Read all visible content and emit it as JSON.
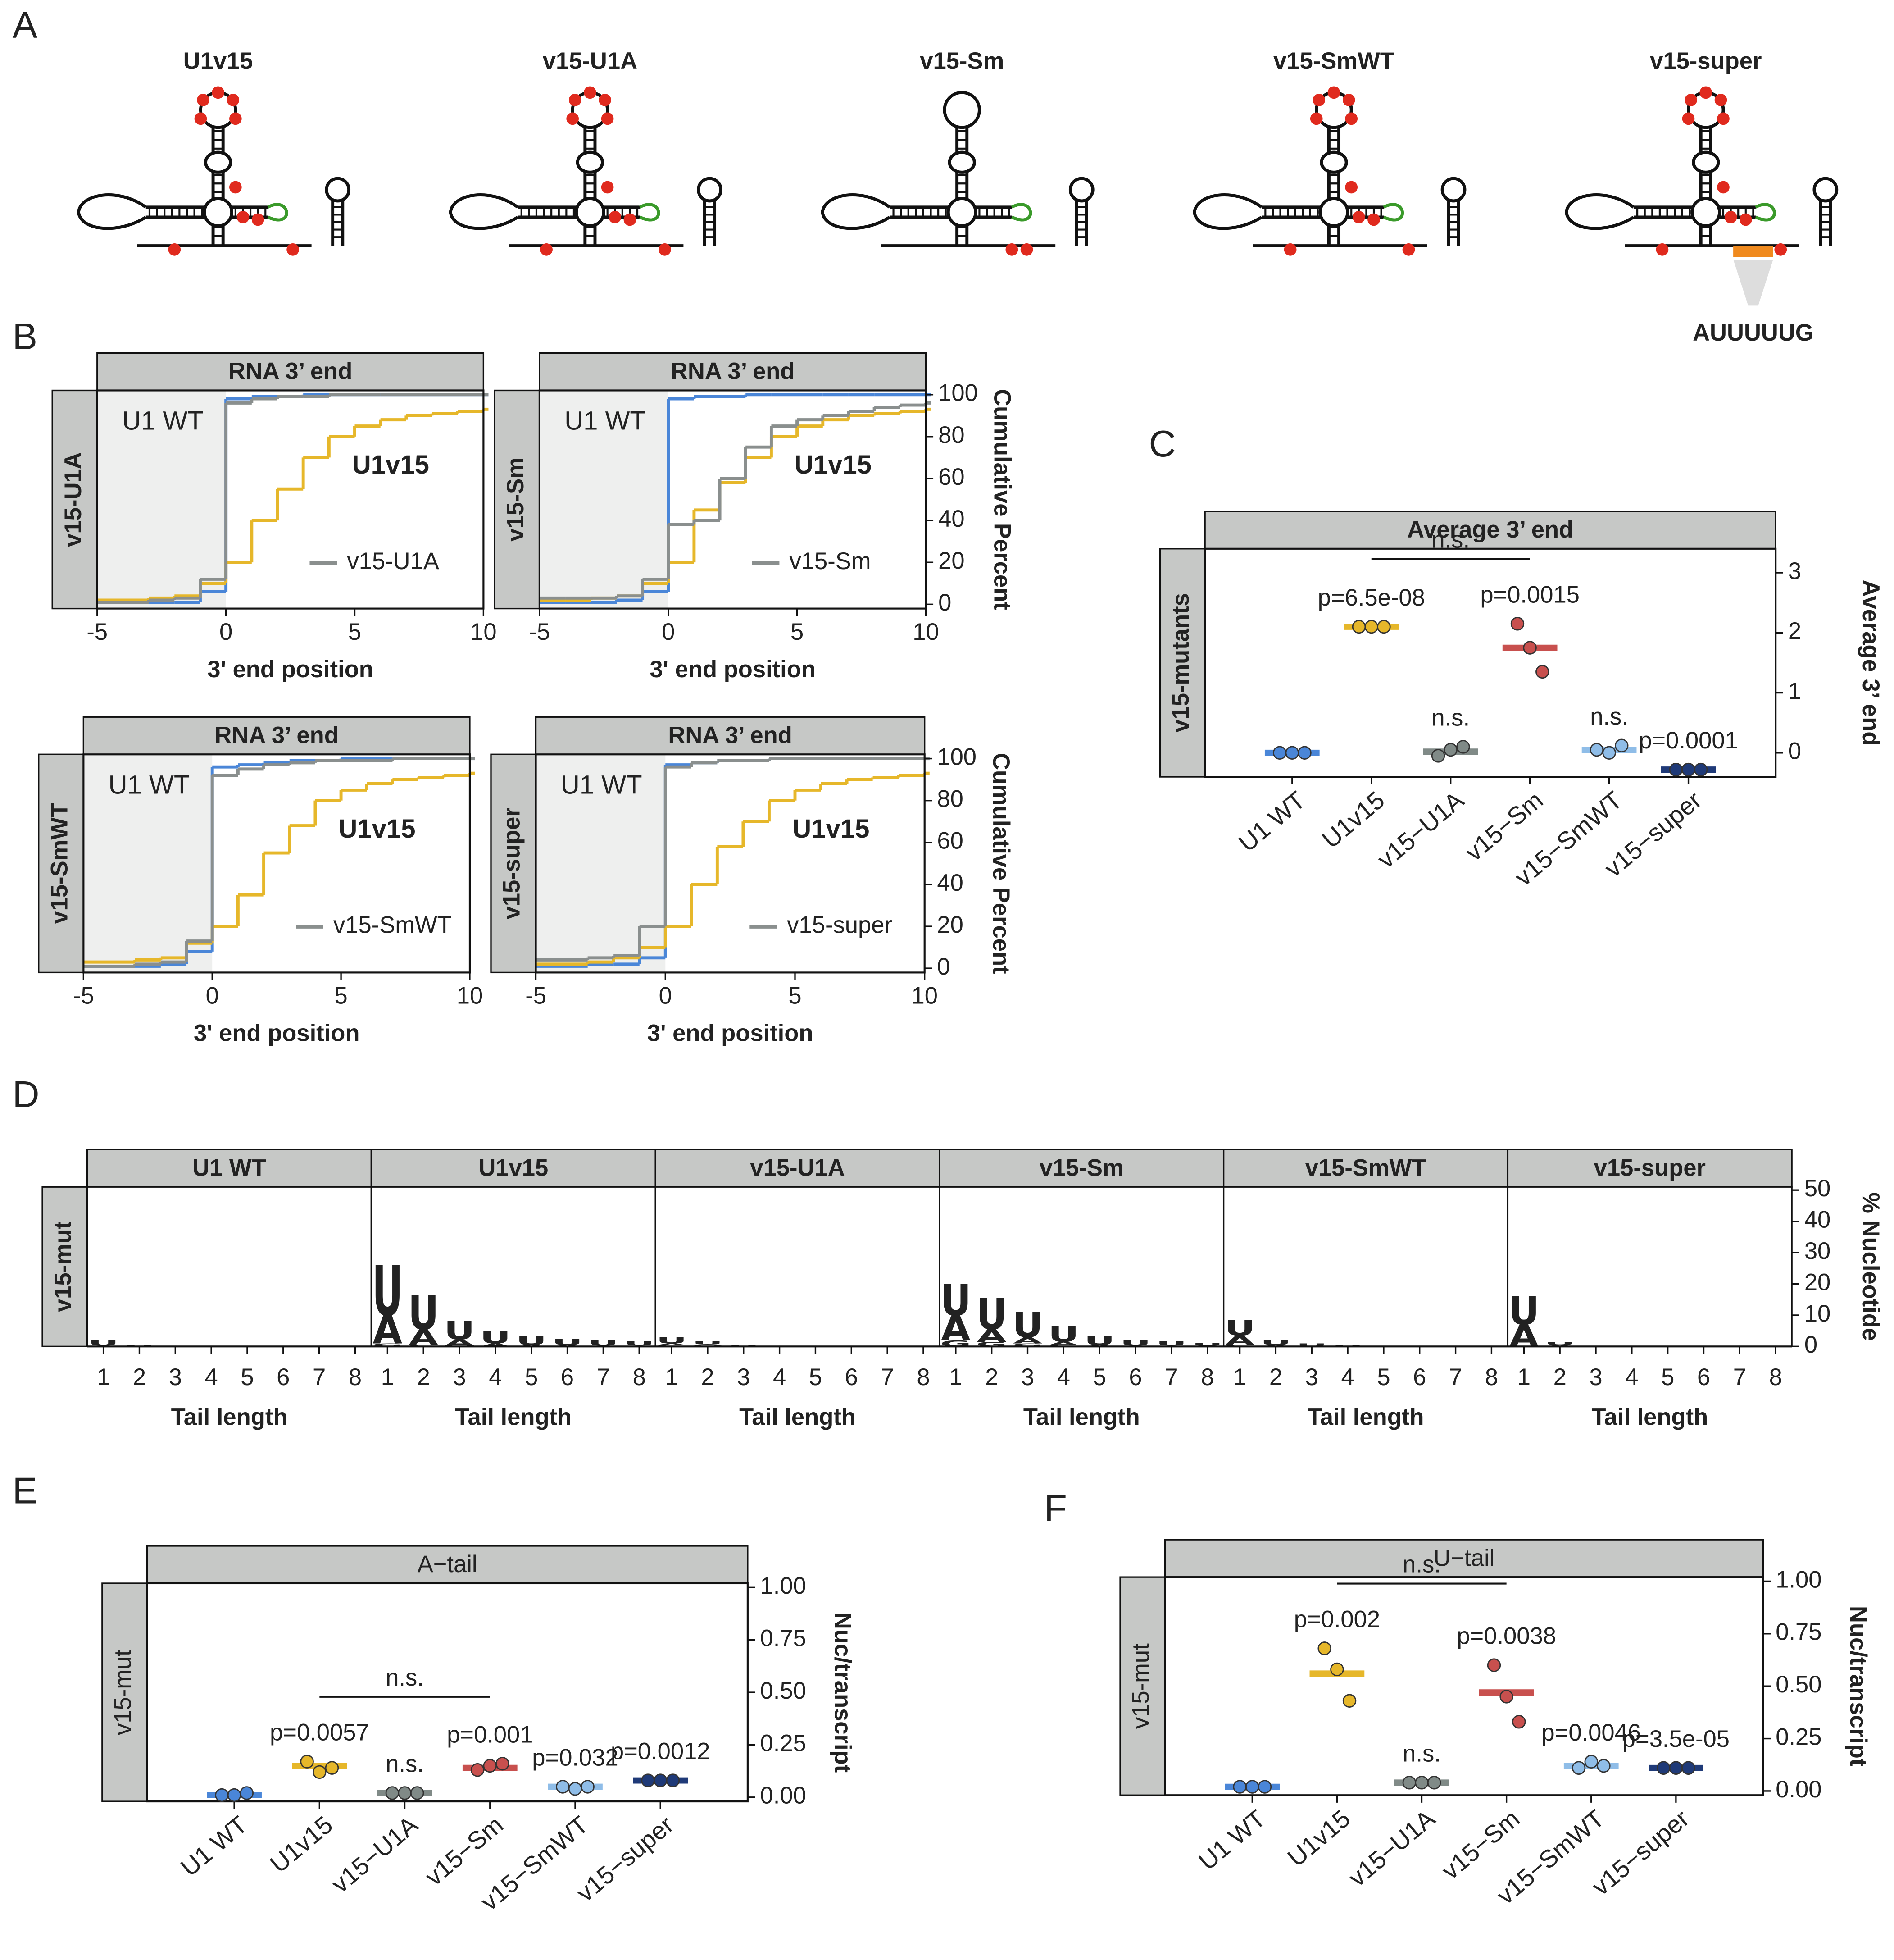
{
  "panel_labels": [
    "A",
    "B",
    "C",
    "D",
    "E",
    "F"
  ],
  "diagrams": {
    "labels": [
      "U1v15",
      "v15-U1A",
      "v15-Sm",
      "v15-SmWT",
      "v15-super"
    ],
    "motif": "AUUUUUG"
  },
  "chart_data": [
    {
      "type": "step",
      "title": "RNA 3’ end",
      "row_label": "v15-U1A",
      "xlabel": "3' end position",
      "x": [
        -5,
        -4,
        -3,
        -2,
        -1,
        0,
        1,
        2,
        3,
        4,
        5,
        6,
        7,
        8,
        9,
        10
      ],
      "xlim": [
        -5,
        10
      ],
      "xticks": [
        -5,
        0,
        5,
        10
      ],
      "ylim": [
        -2,
        102
      ],
      "series": [
        {
          "name": "U1 WT",
          "color": "#4a86d8",
          "values": [
            1,
            1,
            1,
            1,
            6,
            98,
            99,
            99,
            100,
            100,
            100,
            100,
            100,
            100,
            100,
            100
          ]
        },
        {
          "name": "U1v15",
          "color": "#e6b72a",
          "values": [
            2,
            2,
            3,
            4,
            10,
            20,
            40,
            55,
            70,
            80,
            85,
            88,
            90,
            91,
            92,
            93
          ]
        },
        {
          "name": "v15-U1A",
          "color": "#8a8f8e",
          "values": [
            1,
            1,
            2,
            3,
            12,
            96,
            98,
            99,
            99,
            100,
            100,
            100,
            100,
            100,
            100,
            100
          ]
        }
      ]
    },
    {
      "type": "step",
      "title": "RNA 3’ end",
      "row_label": "v15-Sm",
      "xlabel": "3' end position",
      "ylabel": "Cumulative Percent",
      "x": [
        -5,
        -4,
        -3,
        -2,
        -1,
        0,
        1,
        2,
        3,
        4,
        5,
        6,
        7,
        8,
        9,
        10
      ],
      "xlim": [
        -5,
        10
      ],
      "xticks": [
        -5,
        0,
        5,
        10
      ],
      "ylim": [
        -2,
        102
      ],
      "yticks": [
        0,
        20,
        40,
        60,
        80,
        100
      ],
      "series": [
        {
          "name": "U1 WT",
          "color": "#4a86d8",
          "values": [
            1,
            1,
            1,
            2,
            6,
            98,
            99,
            99,
            100,
            100,
            100,
            100,
            100,
            100,
            100,
            100
          ]
        },
        {
          "name": "U1v15",
          "color": "#e6b72a",
          "values": [
            2,
            2,
            3,
            4,
            10,
            20,
            45,
            58,
            70,
            80,
            85,
            88,
            90,
            91,
            92,
            93
          ]
        },
        {
          "name": "v15-Sm",
          "color": "#8a8f8e",
          "values": [
            3,
            3,
            3,
            4,
            12,
            38,
            40,
            60,
            75,
            85,
            88,
            90,
            92,
            94,
            95,
            96
          ]
        }
      ]
    },
    {
      "type": "step",
      "title": "RNA 3’ end",
      "row_label": "v15-SmWT",
      "xlabel": "3' end position",
      "x": [
        -5,
        -4,
        -3,
        -2,
        -1,
        0,
        1,
        2,
        3,
        4,
        5,
        6,
        7,
        8,
        9,
        10
      ],
      "xlim": [
        -5,
        10
      ],
      "xticks": [
        -5,
        0,
        5,
        10
      ],
      "ylim": [
        -2,
        102
      ],
      "series": [
        {
          "name": "U1 WT",
          "color": "#4a86d8",
          "values": [
            1,
            1,
            1,
            2,
            8,
            96,
            97,
            98,
            99,
            99,
            100,
            100,
            100,
            100,
            100,
            100
          ]
        },
        {
          "name": "U1v15",
          "color": "#e6b72a",
          "values": [
            3,
            3,
            4,
            5,
            12,
            20,
            35,
            55,
            68,
            80,
            85,
            88,
            90,
            91,
            92,
            93
          ]
        },
        {
          "name": "v15-SmWT",
          "color": "#8a8f8e",
          "values": [
            1,
            1,
            2,
            3,
            13,
            92,
            95,
            97,
            98,
            99,
            99,
            99,
            100,
            100,
            100,
            100
          ]
        }
      ]
    },
    {
      "type": "step",
      "title": "RNA 3’ end",
      "row_label": "v15-super",
      "xlabel": "3' end position",
      "ylabel": "Cumulative Percent",
      "x": [
        -5,
        -4,
        -3,
        -2,
        -1,
        0,
        1,
        2,
        3,
        4,
        5,
        6,
        7,
        8,
        9,
        10
      ],
      "xlim": [
        -5,
        10
      ],
      "xticks": [
        -5,
        0,
        5,
        10
      ],
      "ylim": [
        -2,
        102
      ],
      "yticks": [
        0,
        20,
        40,
        60,
        80,
        100
      ],
      "series": [
        {
          "name": "U1 WT",
          "color": "#4a86d8",
          "values": [
            1,
            1,
            2,
            2,
            5,
            97,
            98,
            99,
            99,
            100,
            100,
            100,
            100,
            100,
            100,
            100
          ]
        },
        {
          "name": "U1v15",
          "color": "#e6b72a",
          "values": [
            2,
            2,
            3,
            5,
            10,
            20,
            40,
            58,
            70,
            80,
            85,
            88,
            90,
            91,
            92,
            93
          ]
        },
        {
          "name": "v15-super",
          "color": "#8a8f8e",
          "values": [
            4,
            4,
            5,
            6,
            20,
            96,
            98,
            99,
            99,
            100,
            100,
            100,
            100,
            100,
            100,
            100
          ]
        }
      ]
    },
    {
      "type": "dot",
      "title": "Average 3’ end",
      "row_label": "v15-mutants",
      "ylabel": "Average 3’ end",
      "categories": [
        "U1 WT",
        "U1v15",
        "v15−U1A",
        "v15−Sm",
        "v15−SmWT",
        "v15−super"
      ],
      "colors": [
        "#4a86d8",
        "#e6b72a",
        "#808a87",
        "#c8504e",
        "#8fbde8",
        "#1f3a78"
      ],
      "replicates": [
        [
          0,
          0,
          0
        ],
        [
          2.1,
          2.1,
          2.1
        ],
        [
          -0.05,
          0.05,
          0.1
        ],
        [
          2.15,
          1.75,
          1.35
        ],
        [
          0.05,
          0,
          0.12
        ],
        [
          -0.28,
          -0.28,
          -0.28
        ]
      ],
      "means": [
        0,
        2.1,
        0.02,
        1.75,
        0.05,
        -0.28
      ],
      "annotations": [
        null,
        "p=6.5e-08",
        "n.s.",
        "p=0.0015",
        "n.s.",
        "p=0.0001"
      ],
      "bracket": {
        "label": "n.s.",
        "between": [
          "U1v15",
          "v15−Sm"
        ]
      },
      "ylim": [
        -0.4,
        3.4
      ],
      "yticks": [
        0,
        1,
        2,
        3
      ]
    },
    {
      "type": "logo",
      "row_label": "v15-mut",
      "xlabel": "Tail length",
      "ylabel": "% Nucleotide",
      "categories": [
        1,
        2,
        3,
        4,
        5,
        6,
        7,
        8
      ],
      "ylim": [
        0,
        51
      ],
      "yticks": [
        0,
        10,
        20,
        30,
        40,
        50
      ],
      "facets": [
        {
          "title": "U1 WT",
          "series": [
            {
              "name": "U",
              "color": "#4a86d8",
              "values": [
                2,
                0.5,
                0,
                0,
                0,
                0,
                0,
                0
              ]
            },
            {
              "name": "A",
              "color": "#a8d0f0",
              "values": [
                0.3,
                0,
                0,
                0,
                0,
                0,
                0,
                0
              ]
            },
            {
              "name": "G",
              "color": "#7cc242",
              "values": [
                0,
                0,
                0,
                0,
                0,
                0,
                0,
                0
              ]
            }
          ]
        },
        {
          "title": "U1v15",
          "series": [
            {
              "name": "U",
              "color": "#4a86d8",
              "values": [
                16,
                11,
                6,
                4,
                3,
                2,
                2,
                1.5
              ]
            },
            {
              "name": "A",
              "color": "#a8d0f0",
              "values": [
                9,
                5,
                2,
                1,
                0.5,
                0.5,
                0.3,
                0.3
              ]
            },
            {
              "name": "G",
              "color": "#7cc242",
              "values": [
                1,
                0.5,
                0.3,
                0,
                0,
                0,
                0,
                0
              ]
            }
          ]
        },
        {
          "title": "v15-U1A",
          "series": [
            {
              "name": "U",
              "color": "#4a86d8",
              "values": [
                2,
                1,
                0.5,
                0,
                0,
                0,
                0,
                0
              ]
            },
            {
              "name": "A",
              "color": "#a8d0f0",
              "values": [
                0.5,
                0.3,
                0,
                0,
                0,
                0,
                0,
                0
              ]
            },
            {
              "name": "G",
              "color": "#7cc242",
              "values": [
                0.5,
                0.3,
                0,
                0,
                0,
                0,
                0,
                0
              ]
            }
          ]
        },
        {
          "title": "v15-Sm",
          "series": [
            {
              "name": "U",
              "color": "#4a86d8",
              "values": [
                10,
                10,
                8,
                5,
                3,
                2,
                1.5,
                1
              ]
            },
            {
              "name": "A",
              "color": "#a8d0f0",
              "values": [
                8,
                4,
                2,
                1,
                0.5,
                0.3,
                0.3,
                0.2
              ]
            },
            {
              "name": "G",
              "color": "#7cc242",
              "values": [
                2,
                1.5,
                1,
                0.5,
                0,
                0,
                0,
                0
              ]
            }
          ]
        },
        {
          "title": "v15-SmWT",
          "series": [
            {
              "name": "U",
              "color": "#4a86d8",
              "values": [
                5,
                1.5,
                1,
                0.5,
                0,
                0,
                0,
                0
              ]
            },
            {
              "name": "A",
              "color": "#a8d0f0",
              "values": [
                3,
                0.5,
                0,
                0,
                0,
                0,
                0,
                0
              ]
            },
            {
              "name": "G",
              "color": "#7cc242",
              "values": [
                0.5,
                0,
                0,
                0,
                0,
                0,
                0,
                0
              ]
            }
          ]
        },
        {
          "title": "v15-super",
          "series": [
            {
              "name": "U",
              "color": "#4a86d8",
              "values": [
                9,
                1,
                0.3,
                0,
                0,
                0,
                0,
                0
              ]
            },
            {
              "name": "A",
              "color": "#a8d0f0",
              "values": [
                7,
                0.5,
                0,
                0,
                0,
                0,
                0,
                0
              ]
            },
            {
              "name": "G",
              "color": "#7cc242",
              "values": [
                0,
                0,
                0,
                0,
                0,
                0,
                0,
                0
              ]
            }
          ]
        }
      ]
    },
    {
      "type": "dot",
      "title": "A−tail",
      "row_label": "v15-mut",
      "ylabel": "Nuc/transcript",
      "categories": [
        "U1 WT",
        "U1v15",
        "v15−U1A",
        "v15−Sm",
        "v15−SmWT",
        "v15−super"
      ],
      "colors": [
        "#4a86d8",
        "#e6b72a",
        "#808a87",
        "#c8504e",
        "#8fbde8",
        "#1f3a78"
      ],
      "replicates": [
        [
          0.01,
          0.01,
          0.02
        ],
        [
          0.17,
          0.12,
          0.14
        ],
        [
          0.02,
          0.02,
          0.02
        ],
        [
          0.13,
          0.15,
          0.16
        ],
        [
          0.05,
          0.04,
          0.05
        ],
        [
          0.08,
          0.08,
          0.08
        ]
      ],
      "means": [
        0.01,
        0.15,
        0.02,
        0.14,
        0.05,
        0.08
      ],
      "annotations": [
        null,
        "p=0.0057",
        "n.s.",
        "p=0.001",
        "p=0.032",
        "p=0.0012"
      ],
      "bracket": {
        "label": "n.s.",
        "between": [
          "U1v15",
          "v15−Sm"
        ]
      },
      "ylim": [
        -0.02,
        1.02
      ],
      "yticks": [
        {
          "value": 0,
          "label": "0.00"
        },
        {
          "value": 0.25,
          "label": "0.25"
        },
        {
          "value": 0.5,
          "label": "0.50"
        },
        {
          "value": 0.75,
          "label": "0.75"
        },
        {
          "value": 1,
          "label": "1.00"
        }
      ]
    },
    {
      "type": "dot",
      "title": "U−tail",
      "row_label": "v15-mut",
      "ylabel": "Nuc/transcript",
      "categories": [
        "U1 WT",
        "U1v15",
        "v15−U1A",
        "v15−Sm",
        "v15−SmWT",
        "v15−super"
      ],
      "colors": [
        "#4a86d8",
        "#e6b72a",
        "#808a87",
        "#c8504e",
        "#8fbde8",
        "#1f3a78"
      ],
      "replicates": [
        [
          0.02,
          0.02,
          0.02
        ],
        [
          0.68,
          0.58,
          0.43
        ],
        [
          0.04,
          0.04,
          0.04
        ],
        [
          0.6,
          0.45,
          0.33
        ],
        [
          0.11,
          0.14,
          0.12
        ],
        [
          0.11,
          0.11,
          0.11
        ]
      ],
      "means": [
        0.02,
        0.56,
        0.04,
        0.47,
        0.12,
        0.11
      ],
      "annotations": [
        null,
        "p=0.002",
        "n.s.",
        "p=0.0038",
        "p=0.0046",
        "p=3.5e-05"
      ],
      "bracket": {
        "label": "n.s.",
        "between": [
          "U1v15",
          "v15−Sm"
        ]
      },
      "ylim": [
        -0.02,
        1.02
      ],
      "yticks": [
        {
          "value": 0,
          "label": "0.00"
        },
        {
          "value": 0.25,
          "label": "0.25"
        },
        {
          "value": 0.5,
          "label": "0.50"
        },
        {
          "value": 0.75,
          "label": "0.75"
        },
        {
          "value": 1,
          "label": "1.00"
        }
      ]
    }
  ]
}
